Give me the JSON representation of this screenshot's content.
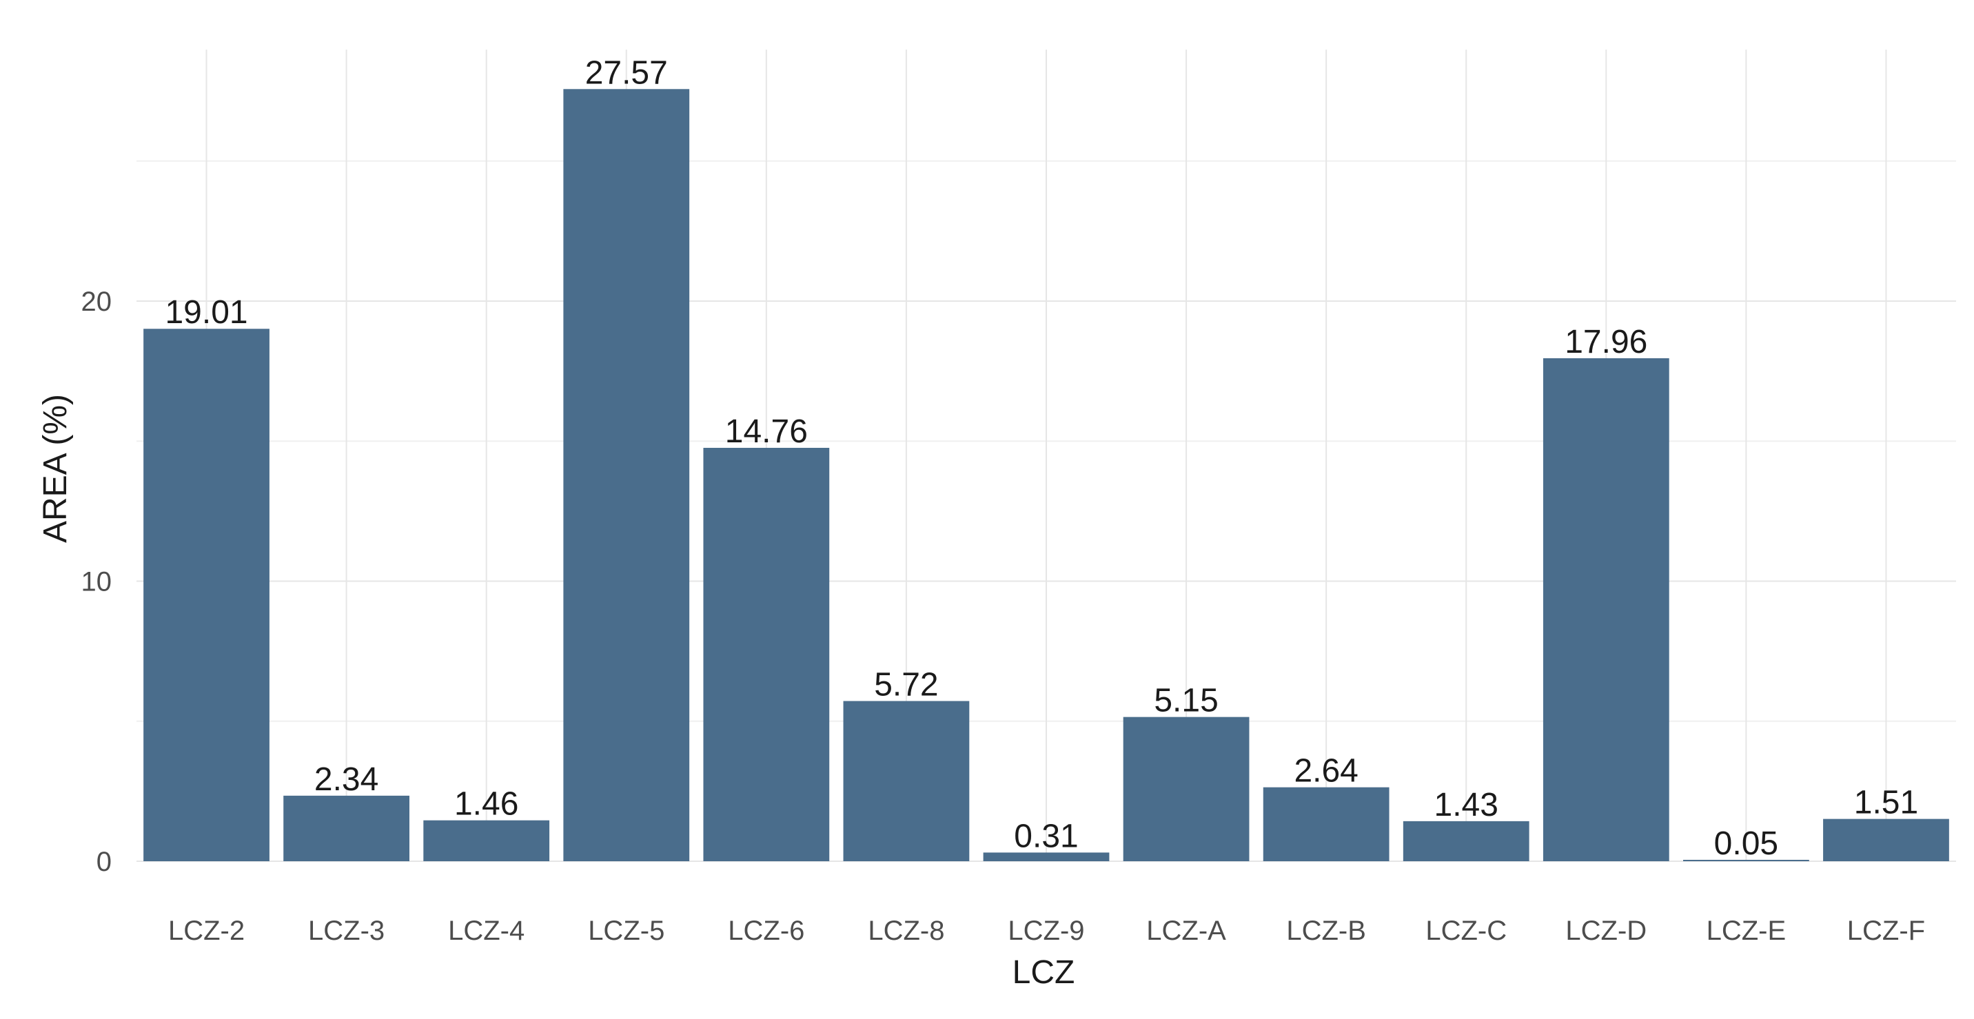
{
  "chart_data": {
    "type": "bar",
    "title": "",
    "xlabel": "LCZ",
    "ylabel": "AREA (%)",
    "categories": [
      "LCZ-2",
      "LCZ-3",
      "LCZ-4",
      "LCZ-5",
      "LCZ-6",
      "LCZ-8",
      "LCZ-9",
      "LCZ-A",
      "LCZ-B",
      "LCZ-C",
      "LCZ-D",
      "LCZ-E",
      "LCZ-F"
    ],
    "values": [
      19.01,
      2.34,
      1.46,
      27.57,
      14.76,
      5.72,
      0.31,
      5.15,
      2.64,
      1.43,
      17.96,
      0.05,
      1.51
    ],
    "value_labels": [
      "19.01",
      "2.34",
      "1.46",
      "27.57",
      "14.76",
      "5.72",
      "0.31",
      "5.15",
      "2.64",
      "1.43",
      "17.96",
      "0.05",
      "1.51"
    ],
    "yticks": [
      "0",
      "10",
      "20"
    ],
    "ytick_values": [
      0,
      10,
      20
    ],
    "ylim": [
      0,
      28.9
    ],
    "grid": true,
    "legend": "none",
    "bar_color": "#4a6d8c"
  }
}
